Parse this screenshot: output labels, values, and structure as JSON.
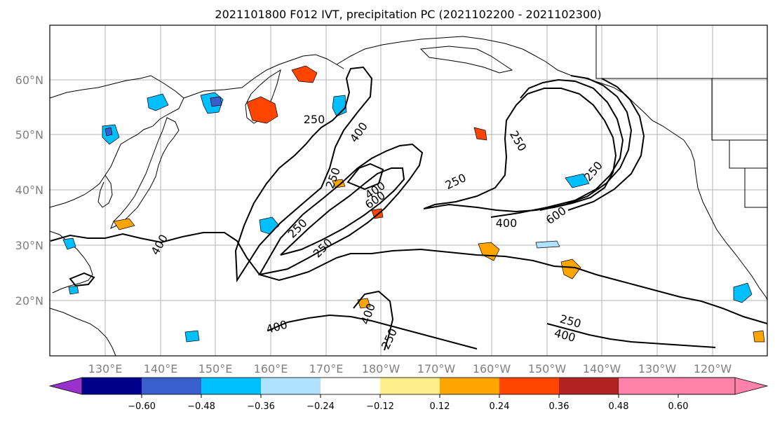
{
  "title": "2021101800 F012 IVT, precipitation PC (2021102200 - 2021102300)",
  "lat_labels": [
    "60°N",
    "50°N",
    "40°N",
    "30°N",
    "20°N"
  ],
  "lon_labels": [
    "130°E",
    "140°E",
    "150°E",
    "160°E",
    "170°E",
    "180°W",
    "170°W",
    "160°W",
    "150°W",
    "140°W",
    "130°W",
    "120°W"
  ],
  "colorbar": {
    "tick_labels": [
      "−0.60",
      "−0.48",
      "−0.36",
      "−0.24",
      "−0.12",
      "0.12",
      "0.24",
      "0.36",
      "0.48",
      "0.60"
    ],
    "colors": [
      "#9932cc",
      "#00008b",
      "#3a5fcd",
      "#00bfff",
      "#b0e2ff",
      "#ffffff",
      "#ffec8b",
      "#ffa500",
      "#ff4500",
      "#b22222",
      "#ff82ab"
    ]
  },
  "contour_labels": [
    "250",
    "400",
    "250",
    "400",
    "600",
    "250",
    "250",
    "400",
    "250",
    "250",
    "400",
    "600",
    "250",
    "400",
    "400",
    "250",
    "250",
    "400"
  ],
  "contour_levels": [
    250,
    400,
    600
  ]
}
